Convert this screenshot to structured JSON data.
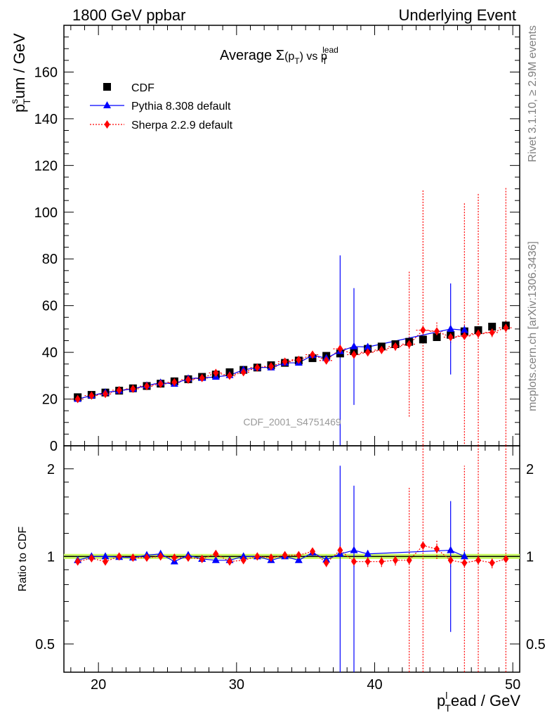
{
  "header": {
    "left": "1800 GeV ppbar",
    "right": "Underlying Event"
  },
  "side_labels": {
    "rivet": "Rivet 3.1.10, ≥ 2.9M events",
    "mcplots": "mcplots.cern.ch [arXiv:1306.3436]"
  },
  "watermark": "CDF_2001_S4751469",
  "colors": {
    "cdf": "#000000",
    "pythia": "#0000ff",
    "sherpa": "#ff0000",
    "band": "#ccff66"
  },
  "chart_data": [
    {
      "type": "scatter",
      "panel": "main",
      "title": "Average Σ(pT) vs pT lead",
      "title_parts": {
        "a": "Average ",
        "sigma": "Σ",
        "b": "(p",
        "sub": "T",
        "c": ")  vs p",
        "d": "T",
        "sup": "lead"
      },
      "ylabel_parts": {
        "p": "p",
        "sup": "s",
        "sub": "T",
        "rest": "um / GeV"
      },
      "xlim": [
        17.5,
        50.5
      ],
      "ylim": [
        0,
        180
      ],
      "yticks": [
        0,
        20,
        40,
        60,
        80,
        100,
        120,
        140,
        160
      ],
      "ytick_labels": [
        "0",
        "20",
        "40",
        "60",
        "80",
        "100",
        "120",
        "140",
        "160"
      ],
      "legend_position": "top-left",
      "series": [
        {
          "name": "CDF",
          "marker": "square",
          "x": [
            18.5,
            19.5,
            20.5,
            21.5,
            22.5,
            23.5,
            24.5,
            25.5,
            26.5,
            27.5,
            28.5,
            29.5,
            30.5,
            31.5,
            32.5,
            33.5,
            34.5,
            35.5,
            36.5,
            37.5,
            38.5,
            39.5,
            40.5,
            41.5,
            42.5,
            43.5,
            44.5,
            45.5,
            46.5,
            47.5,
            48.5,
            49.5
          ],
          "y": [
            20.8,
            21.8,
            22.8,
            23.6,
            24.6,
            25.6,
            26.6,
            27.6,
            28.5,
            29.5,
            30.5,
            31.5,
            32.5,
            33.5,
            34.5,
            35.5,
            36.5,
            37.5,
            38.5,
            39.5,
            40.5,
            41.5,
            42.5,
            43.5,
            44.5,
            45.5,
            46.5,
            47.5,
            49.0,
            49.5,
            51.0,
            51.5
          ]
        },
        {
          "name": "Pythia 8.308 default",
          "marker": "triangle",
          "line": "solid",
          "x": [
            18.5,
            19.5,
            20.5,
            21.5,
            22.5,
            23.5,
            24.5,
            25.5,
            26.5,
            27.5,
            28.5,
            29.5,
            30.5,
            31.5,
            32.5,
            33.5,
            34.5,
            35.5,
            36.5,
            37.5,
            38.5,
            39.5,
            45.5,
            46.5
          ],
          "y": [
            20.0,
            21.5,
            22.8,
            23.6,
            24.4,
            25.8,
            27.0,
            26.5,
            28.8,
            29.0,
            29.5,
            30.2,
            32.5,
            33.5,
            33.5,
            35.5,
            35.5,
            38.8,
            37.5,
            40.5,
            42.5,
            42.3,
            50.0,
            49.5
          ],
          "yerr": [
            0.4,
            0.4,
            0.5,
            0.5,
            0.5,
            0.6,
            0.6,
            0.6,
            0.7,
            0.7,
            0.8,
            0.8,
            0.9,
            1.0,
            1.0,
            1.1,
            1.2,
            1.3,
            1.4,
            41.0,
            25.0,
            1.5,
            19.5,
            2.0
          ]
        },
        {
          "name": "Sherpa 2.2.9 default",
          "marker": "diamond",
          "line": "dotted",
          "x": [
            18.5,
            19.5,
            20.5,
            21.5,
            22.5,
            23.5,
            24.5,
            25.5,
            26.5,
            27.5,
            28.5,
            29.5,
            30.5,
            31.5,
            32.5,
            33.5,
            34.5,
            35.5,
            36.5,
            37.5,
            38.5,
            39.5,
            40.5,
            41.5,
            42.5,
            43.5,
            44.5,
            45.5,
            46.5,
            47.5,
            48.5,
            49.5
          ],
          "y": [
            20.0,
            21.5,
            22.2,
            23.8,
            24.4,
            25.5,
            26.5,
            27.2,
            28.3,
            29.0,
            31.2,
            30.0,
            31.5,
            33.5,
            34.0,
            36.0,
            36.8,
            39.0,
            36.5,
            41.5,
            39.0,
            40.0,
            41.0,
            42.5,
            43.5,
            49.5,
            49.0,
            46.5,
            47.0,
            48.0,
            48.5,
            50.5
          ],
          "yerr": [
            0.4,
            0.4,
            0.5,
            0.5,
            0.5,
            0.6,
            0.6,
            0.6,
            0.7,
            0.7,
            0.8,
            0.8,
            0.9,
            1.0,
            1.0,
            1.1,
            1.2,
            1.3,
            1.4,
            1.5,
            1.6,
            1.6,
            1.6,
            1.8,
            31.0,
            60.0,
            4.0,
            2.5,
            57.0,
            60.0,
            2.0,
            60.0
          ]
        }
      ]
    },
    {
      "type": "scatter",
      "panel": "ratio",
      "ylabel": "Ratio to CDF",
      "xlabel_parts": {
        "p": "p",
        "sup": "l",
        "sub": "T",
        "rest": "ead / GeV"
      },
      "xlim": [
        17.5,
        50.5
      ],
      "ylim_log": [
        0.4,
        2.4
      ],
      "yticks": [
        0.5,
        1,
        2
      ],
      "ytick_labels": [
        "0.5",
        "1",
        "2"
      ],
      "xticks": [
        20,
        30,
        40,
        50
      ],
      "xtick_labels": [
        "20",
        "30",
        "40",
        "50"
      ],
      "band_halfwidth": 0.02,
      "series": [
        {
          "name": "Pythia 8.308 default",
          "x": [
            18.5,
            19.5,
            20.5,
            21.5,
            22.5,
            23.5,
            24.5,
            25.5,
            26.5,
            27.5,
            28.5,
            29.5,
            30.5,
            31.5,
            32.5,
            33.5,
            34.5,
            35.5,
            36.5,
            37.5,
            38.5,
            39.5,
            45.5,
            46.5
          ],
          "y": [
            0.97,
            1.0,
            1.0,
            0.995,
            0.99,
            1.01,
            1.02,
            0.96,
            1.01,
            0.98,
            0.97,
            0.97,
            1.0,
            1.0,
            0.97,
            1.0,
            0.97,
            1.03,
            0.975,
            1.02,
            1.05,
            1.02,
            1.05,
            1.0
          ],
          "yerr": [
            0.02,
            0.02,
            0.02,
            0.02,
            0.02,
            0.02,
            0.02,
            0.02,
            0.02,
            0.02,
            0.02,
            0.02,
            0.02,
            0.02,
            0.02,
            0.02,
            0.02,
            0.03,
            0.03,
            1.03,
            0.7,
            0.03,
            0.5,
            0.04
          ]
        },
        {
          "name": "Sherpa 2.2.9 default",
          "x": [
            18.5,
            19.5,
            20.5,
            21.5,
            22.5,
            23.5,
            24.5,
            25.5,
            26.5,
            27.5,
            28.5,
            29.5,
            30.5,
            31.5,
            32.5,
            33.5,
            34.5,
            35.5,
            36.5,
            37.5,
            38.5,
            39.5,
            40.5,
            41.5,
            42.5,
            43.5,
            44.5,
            45.5,
            46.5,
            47.5,
            48.5,
            49.5
          ],
          "y": [
            0.96,
            0.985,
            0.96,
            1.0,
            0.99,
            0.99,
            1.0,
            0.99,
            0.99,
            0.98,
            1.02,
            0.96,
            0.97,
            1.0,
            0.99,
            1.01,
            1.01,
            1.04,
            0.95,
            1.05,
            0.96,
            0.96,
            0.96,
            0.97,
            0.97,
            1.09,
            1.06,
            0.97,
            0.95,
            0.97,
            0.95,
            0.98
          ],
          "yerr": [
            0.02,
            0.02,
            0.02,
            0.02,
            0.02,
            0.02,
            0.02,
            0.02,
            0.02,
            0.02,
            0.02,
            0.02,
            0.02,
            0.02,
            0.02,
            0.02,
            0.02,
            0.03,
            0.03,
            0.04,
            0.04,
            0.04,
            0.04,
            0.04,
            0.75,
            1.5,
            0.08,
            0.05,
            1.1,
            1.5,
            0.04,
            1.5
          ]
        }
      ]
    }
  ]
}
